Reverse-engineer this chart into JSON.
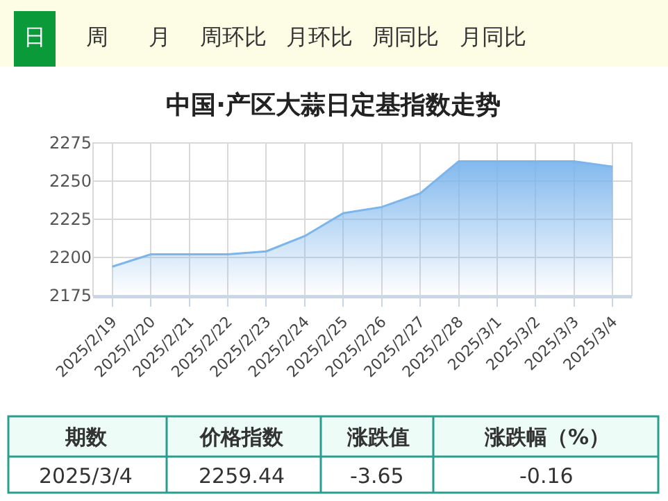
{
  "chart_data": {
    "type": "area",
    "title": "中国·产区大蒜日定基指数走势",
    "categories": [
      "2025/2/19",
      "2025/2/20",
      "2025/2/21",
      "2025/2/22",
      "2025/2/23",
      "2025/2/24",
      "2025/2/25",
      "2025/2/26",
      "2025/2/27",
      "2025/2/28",
      "2025/3/1",
      "2025/3/2",
      "2025/3/3",
      "2025/3/4"
    ],
    "series": [
      {
        "color": "#7cb5ec",
        "values": [
          2194,
          2202,
          2202,
          2202,
          2204,
          2214,
          2229,
          2233,
          2242,
          2263,
          2263,
          2263,
          2263,
          2259.44
        ]
      }
    ],
    "ylim": [
      2175,
      2275
    ],
    "yticks": [
      2175,
      2200,
      2225,
      2250,
      2275
    ],
    "grid": true,
    "marker": "none",
    "line_style": "solid",
    "annotations": [
      "日",
      "周",
      "月",
      "周环比",
      "月环比",
      "周同比",
      "月同比",
      "期数",
      "价格指数",
      "涨跌值",
      "涨跌幅（%）",
      "2025/3/4",
      "2259.44",
      "-3.65",
      "-0.16"
    ]
  }
}
